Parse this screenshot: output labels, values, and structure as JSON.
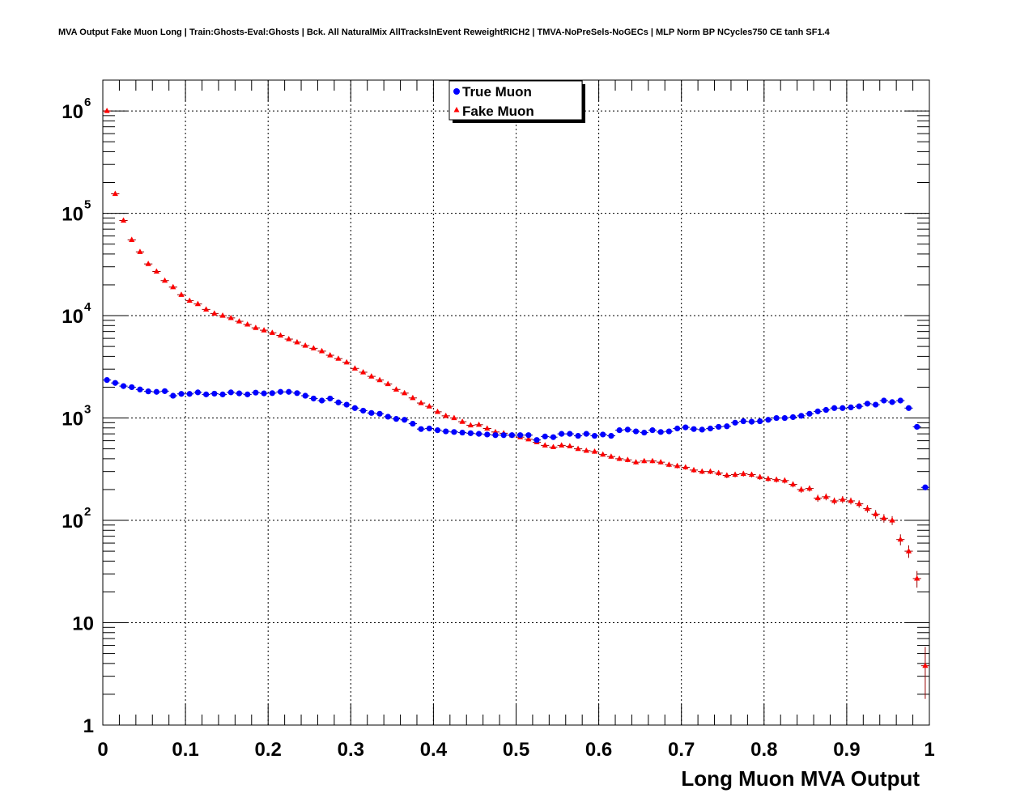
{
  "title": "MVA Output Fake Muon Long | Train:Ghosts-Eval:Ghosts | Bck. All NaturalMix AllTracksInEvent ReweightRICH2 | TMVA-NoPreSels-NoGECs | MLP Norm BP NCycles750 CE tanh SF1.4",
  "colors": {
    "true_muon": "#0000ff",
    "fake_muon": "#ff0000",
    "fake_err": "#990000",
    "grid": "#000000"
  },
  "chart_data": {
    "type": "scatter",
    "title": "MVA Output Fake Muon Long | Train:Ghosts-Eval:Ghosts | Bck. All NaturalMix AllTracksInEvent ReweightRICH2 | TMVA-NoPreSels-NoGECs | MLP Norm BP NCycles750 CE tanh SF1.4",
    "xlabel": "Long Muon MVA Output",
    "ylabel": "",
    "xlim": [
      0,
      1
    ],
    "ylim": [
      1,
      2000000
    ],
    "yscale": "log",
    "grid": true,
    "legend_position": "top-center",
    "x_ticks": [
      "0",
      "0.1",
      "0.2",
      "0.3",
      "0.4",
      "0.5",
      "0.6",
      "0.7",
      "0.8",
      "0.9",
      "1"
    ],
    "y_ticks": [
      {
        "value": 1,
        "base": "1",
        "exp": ""
      },
      {
        "value": 10,
        "base": "10",
        "exp": ""
      },
      {
        "value": 100,
        "base": "10",
        "exp": "2"
      },
      {
        "value": 1000,
        "base": "10",
        "exp": "3"
      },
      {
        "value": 10000,
        "base": "10",
        "exp": "4"
      },
      {
        "value": 100000,
        "base": "10",
        "exp": "5"
      },
      {
        "value": 1000000,
        "base": "10",
        "exp": "6"
      }
    ],
    "series": [
      {
        "name": "True Muon",
        "marker": "circle",
        "x": [
          0.005,
          0.015,
          0.025,
          0.035,
          0.045,
          0.055,
          0.065,
          0.075,
          0.085,
          0.095,
          0.105,
          0.115,
          0.125,
          0.135,
          0.145,
          0.155,
          0.165,
          0.175,
          0.185,
          0.195,
          0.205,
          0.215,
          0.225,
          0.235,
          0.245,
          0.255,
          0.265,
          0.275,
          0.285,
          0.295,
          0.305,
          0.315,
          0.325,
          0.335,
          0.345,
          0.355,
          0.365,
          0.375,
          0.385,
          0.395,
          0.405,
          0.415,
          0.425,
          0.435,
          0.445,
          0.455,
          0.465,
          0.475,
          0.485,
          0.495,
          0.505,
          0.515,
          0.525,
          0.535,
          0.545,
          0.555,
          0.565,
          0.575,
          0.585,
          0.595,
          0.605,
          0.615,
          0.625,
          0.635,
          0.645,
          0.655,
          0.665,
          0.675,
          0.685,
          0.695,
          0.705,
          0.715,
          0.725,
          0.735,
          0.745,
          0.755,
          0.765,
          0.775,
          0.785,
          0.795,
          0.805,
          0.815,
          0.825,
          0.835,
          0.845,
          0.855,
          0.865,
          0.875,
          0.885,
          0.895,
          0.905,
          0.915,
          0.925,
          0.935,
          0.945,
          0.955,
          0.965,
          0.975,
          0.985,
          0.995
        ],
        "values": [
          2350,
          2200,
          2050,
          2000,
          1900,
          1820,
          1800,
          1830,
          1650,
          1720,
          1720,
          1780,
          1700,
          1730,
          1700,
          1780,
          1740,
          1700,
          1770,
          1740,
          1750,
          1800,
          1800,
          1750,
          1650,
          1550,
          1480,
          1550,
          1420,
          1350,
          1250,
          1180,
          1120,
          1100,
          1030,
          980,
          960,
          880,
          780,
          790,
          760,
          740,
          730,
          720,
          710,
          700,
          690,
          680,
          680,
          680,
          680,
          680,
          610,
          660,
          650,
          700,
          700,
          670,
          700,
          670,
          690,
          670,
          760,
          770,
          740,
          720,
          760,
          730,
          740,
          790,
          810,
          780,
          770,
          790,
          820,
          830,
          900,
          930,
          920,
          930,
          960,
          1000,
          1000,
          1020,
          1050,
          1100,
          1160,
          1200,
          1250,
          1250,
          1270,
          1300,
          1380,
          1350,
          1480,
          1430,
          1480,
          1250,
          820,
          210
        ]
      },
      {
        "name": "Fake Muon",
        "marker": "triangle",
        "x": [
          0.005,
          0.015,
          0.025,
          0.035,
          0.045,
          0.055,
          0.065,
          0.075,
          0.085,
          0.095,
          0.105,
          0.115,
          0.125,
          0.135,
          0.145,
          0.155,
          0.165,
          0.175,
          0.185,
          0.195,
          0.205,
          0.215,
          0.225,
          0.235,
          0.245,
          0.255,
          0.265,
          0.275,
          0.285,
          0.295,
          0.305,
          0.315,
          0.325,
          0.335,
          0.345,
          0.355,
          0.365,
          0.375,
          0.385,
          0.395,
          0.405,
          0.415,
          0.425,
          0.435,
          0.445,
          0.455,
          0.465,
          0.475,
          0.485,
          0.495,
          0.505,
          0.515,
          0.525,
          0.535,
          0.545,
          0.555,
          0.565,
          0.575,
          0.585,
          0.595,
          0.605,
          0.615,
          0.625,
          0.635,
          0.645,
          0.655,
          0.665,
          0.675,
          0.685,
          0.695,
          0.705,
          0.715,
          0.725,
          0.735,
          0.745,
          0.755,
          0.765,
          0.775,
          0.785,
          0.795,
          0.805,
          0.815,
          0.825,
          0.835,
          0.845,
          0.855,
          0.865,
          0.875,
          0.885,
          0.895,
          0.905,
          0.915,
          0.925,
          0.935,
          0.945,
          0.955,
          0.965,
          0.975,
          0.985,
          0.995
        ],
        "values": [
          1000000,
          155000,
          85000,
          55000,
          42000,
          32000,
          27000,
          22000,
          19000,
          16000,
          14000,
          13000,
          11500,
          10500,
          10000,
          9500,
          8800,
          8200,
          7600,
          7200,
          6800,
          6400,
          5900,
          5500,
          5100,
          4800,
          4500,
          4100,
          3800,
          3500,
          3050,
          2800,
          2550,
          2350,
          2150,
          1900,
          1750,
          1570,
          1400,
          1300,
          1150,
          1050,
          1000,
          920,
          850,
          860,
          790,
          730,
          710,
          680,
          650,
          620,
          580,
          540,
          520,
          540,
          530,
          500,
          480,
          470,
          440,
          420,
          400,
          390,
          370,
          380,
          380,
          370,
          350,
          340,
          330,
          310,
          300,
          300,
          290,
          275,
          280,
          285,
          280,
          265,
          255,
          250,
          245,
          225,
          200,
          205,
          165,
          170,
          155,
          160,
          155,
          145,
          130,
          115,
          105,
          100,
          65,
          50,
          27,
          3.8
        ],
        "errors": [
          1000,
          394,
          292,
          235,
          205,
          179,
          164,
          148,
          138,
          126,
          118,
          114,
          107,
          102,
          100,
          97,
          94,
          91,
          87,
          85,
          82,
          80,
          77,
          74,
          71,
          69,
          67,
          64,
          62,
          59,
          55,
          53,
          50,
          48,
          46,
          44,
          42,
          40,
          37,
          36,
          34,
          32,
          32,
          30,
          29,
          29,
          28,
          27,
          27,
          26,
          25,
          25,
          24,
          23,
          23,
          23,
          23,
          22,
          22,
          22,
          21,
          20,
          20,
          20,
          19,
          19,
          19,
          19,
          19,
          18,
          18,
          18,
          17,
          17,
          17,
          17,
          17,
          17,
          17,
          16,
          16,
          16,
          16,
          15,
          14,
          14,
          13,
          13,
          12,
          13,
          12,
          12,
          11,
          11,
          10,
          10,
          8,
          7,
          5,
          2
        ]
      }
    ]
  }
}
